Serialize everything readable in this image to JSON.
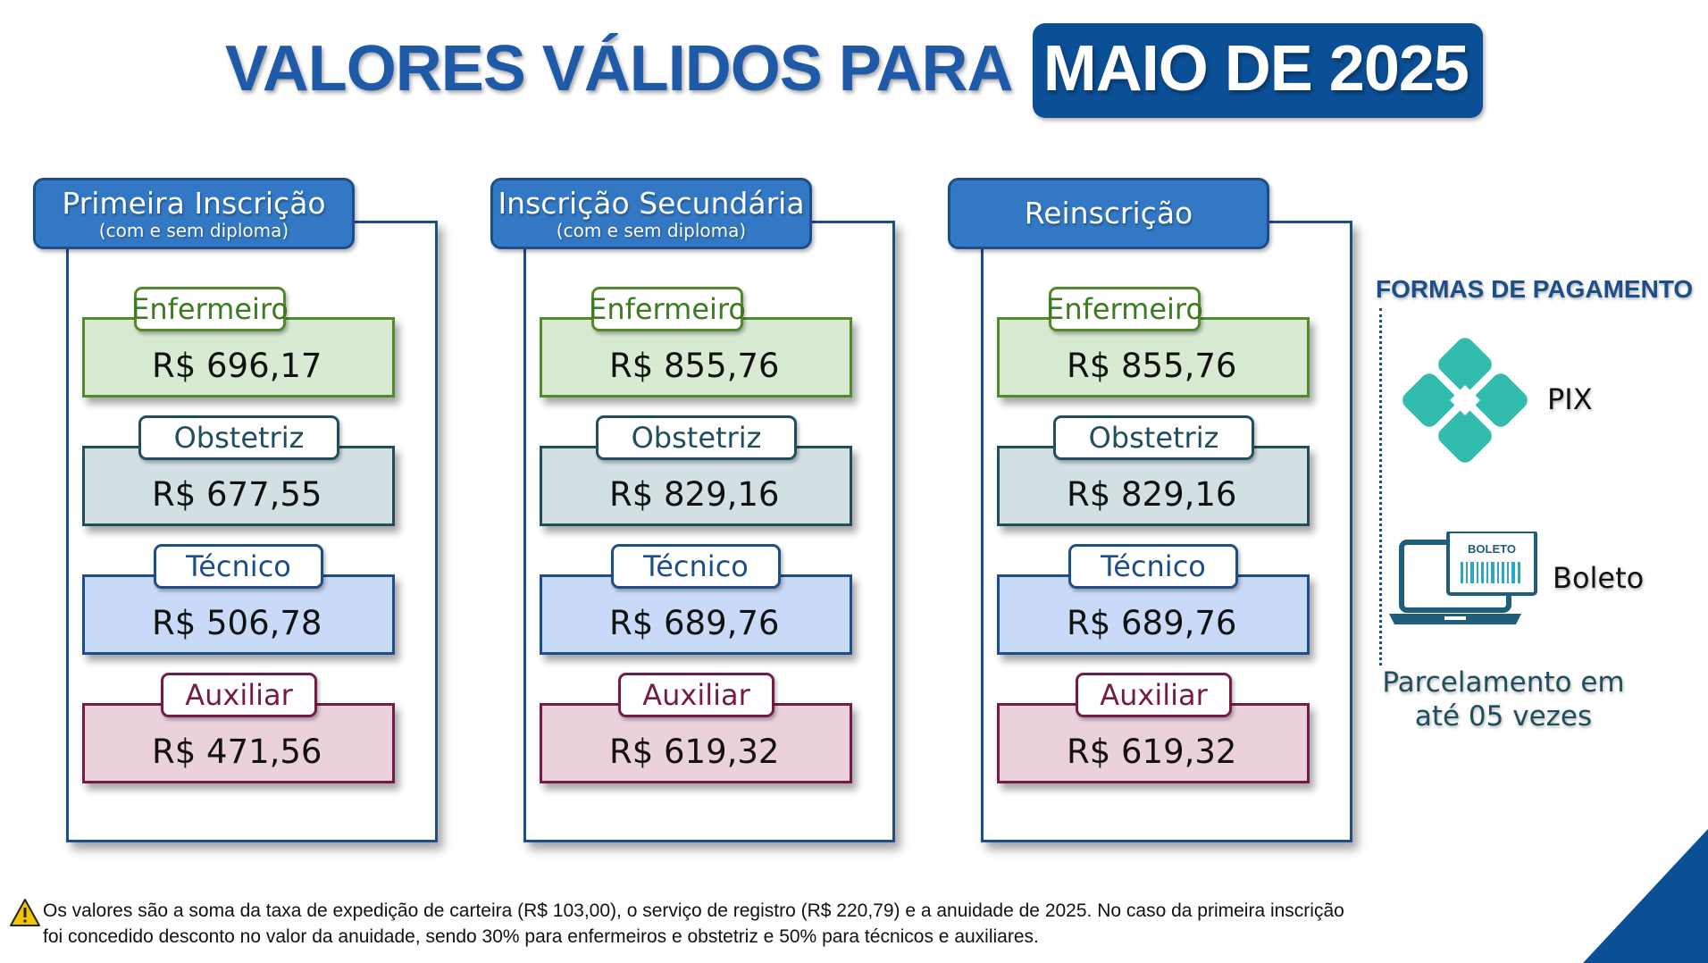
{
  "title": {
    "main": "VALORES VÁLIDOS PARA",
    "highlight": "MAIO DE 2025"
  },
  "panels": [
    {
      "title": "Primeira Inscrição",
      "subtitle": "(com e sem diploma)",
      "items": [
        {
          "label": "Enfermeiro",
          "value": "R$ 696,17"
        },
        {
          "label": "Obstetriz",
          "value": "R$ 677,55"
        },
        {
          "label": "Técnico",
          "value": "R$ 506,78"
        },
        {
          "label": "Auxiliar",
          "value": "R$ 471,56"
        }
      ]
    },
    {
      "title": "Inscrição Secundária",
      "subtitle": "(com e sem diploma)",
      "items": [
        {
          "label": "Enfermeiro",
          "value": "R$ 855,76"
        },
        {
          "label": "Obstetriz",
          "value": "R$ 829,16"
        },
        {
          "label": "Técnico",
          "value": "R$ 689,76"
        },
        {
          "label": "Auxiliar",
          "value": "R$ 619,32"
        }
      ]
    },
    {
      "title": "Reinscrição",
      "items": [
        {
          "label": "Enfermeiro",
          "value": "R$ 855,76"
        },
        {
          "label": "Obstetriz",
          "value": "R$ 829,16"
        },
        {
          "label": "Técnico",
          "value": "R$ 689,76"
        },
        {
          "label": "Auxiliar",
          "value": "R$ 619,32"
        }
      ]
    }
  ],
  "payment": {
    "title": "FORMAS DE PAGAMENTO",
    "pix_label": "PIX",
    "boleto_label": "Boleto",
    "boleto_icon_text": "BOLETO",
    "installments_line1": "Parcelamento em",
    "installments_line2": "até 05 vezes"
  },
  "footnote": "Os valores são a soma da taxa de expedição de carteira (R$ 103,00), o serviço de registro (R$ 220,79) e a anuidade de 2025. No caso da primeira inscrição foi concedido desconto no valor da anuidade, sendo 30% para enfermeiros e obstetriz e 50% para técnicos e auxiliares.",
  "colors": {
    "title_blue": "#1e5aa8",
    "highlight_bg": "#0b4f96",
    "enfermeiro": "#4f8a2c",
    "obstetriz": "#1f4e5e",
    "tecnico": "#1c4f8a",
    "auxiliar": "#741b47",
    "pix": "#32bcad"
  },
  "icons": [
    "pix-icon",
    "boleto-laptop-icon",
    "warning-icon"
  ]
}
